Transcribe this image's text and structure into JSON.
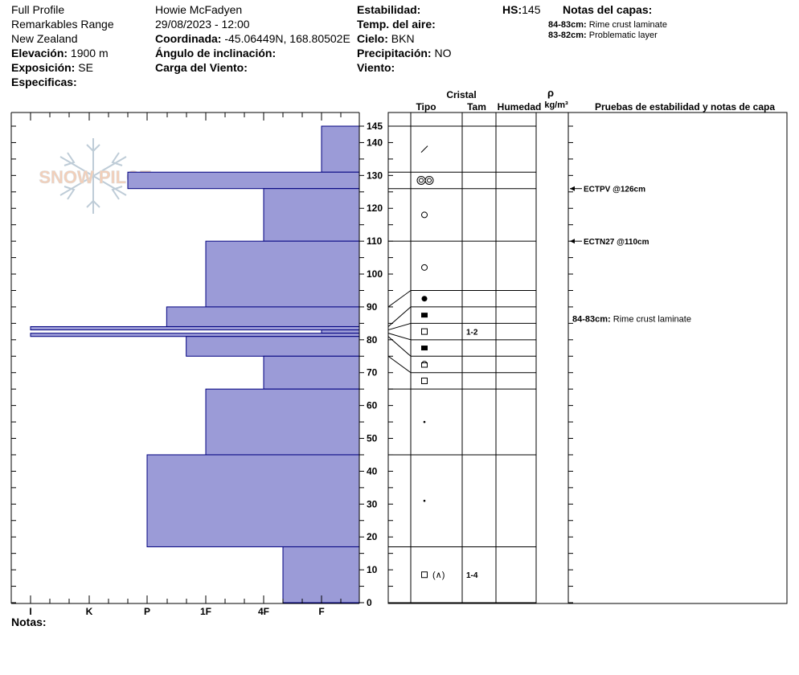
{
  "header": {
    "col1": {
      "profile_type": "Full Profile",
      "location": "Remarkables Range",
      "country": "New Zealand",
      "elevation_label": "Elevación:",
      "elevation_value": "1900 m",
      "aspect_label": "Exposición:",
      "aspect_value": "SE",
      "specifics_label": "Especificas:"
    },
    "col2": {
      "observer": "Howie McFadyen",
      "datetime": "29/08/2023 - 12:00",
      "coord_label": "Coordinada:",
      "coord_value": "-45.06449N, 168.80502E",
      "slope_label": "Ángulo de inclinación:",
      "wind_load_label": "Carga del Viento:"
    },
    "col3": {
      "stability_label": "Estabilidad:",
      "air_temp_label": "Temp. del aire:",
      "sky_label": "Cielo:",
      "sky_value": "BKN",
      "precip_label": "Precipitación:",
      "precip_value": "NO",
      "wind_label": "Viento:"
    },
    "hs_label": "HS:",
    "hs_value": "145",
    "layer_notes_title": "Notas del capas:",
    "layer_notes": [
      {
        "range": "84-83cm:",
        "text": "Rime crust laminate"
      },
      {
        "range": "83-82cm:",
        "text": "Problematic layer"
      }
    ]
  },
  "columns": {
    "crystal": "Cristal",
    "type": "Tipo",
    "size": "Tam",
    "moisture": "Humedad",
    "density_symbol": "ρ",
    "density_unit": "kg/m³",
    "stability_notes": "Pruebas de estabilidad y notas de capa"
  },
  "footer": {
    "notes_label": "Notas:"
  },
  "logo_text": "SNOW PILOT",
  "colors": {
    "bar_fill": "#9b9bd7",
    "bar_stroke": "#00007f",
    "line": "#000000"
  },
  "chart_data": {
    "type": "bar",
    "orientation": "horizontal",
    "x_label": "",
    "y_label": "",
    "hardness_ticks": [
      "I",
      "K",
      "P",
      "1F",
      "4F",
      "F"
    ],
    "y_range": [
      0,
      145
    ],
    "y_ticks": [
      0,
      10,
      20,
      30,
      40,
      50,
      60,
      70,
      80,
      90,
      100,
      110,
      120,
      130,
      140,
      145
    ],
    "hardness_layers": [
      {
        "bottom": 131,
        "top": 145,
        "hardness": "F"
      },
      {
        "bottom": 126,
        "top": 131,
        "hardness": "P+"
      },
      {
        "bottom": 110,
        "top": 126,
        "hardness": "4F"
      },
      {
        "bottom": 90,
        "top": 110,
        "hardness": "1F"
      },
      {
        "bottom": 84,
        "top": 90,
        "hardness": "P-"
      },
      {
        "bottom": 83,
        "top": 84,
        "hardness": "I"
      },
      {
        "bottom": 82,
        "top": 83,
        "hardness": "F"
      },
      {
        "bottom": 81,
        "top": 82,
        "hardness": "I"
      },
      {
        "bottom": 75,
        "top": 81,
        "hardness": "1F+"
      },
      {
        "bottom": 65,
        "top": 75,
        "hardness": "4F"
      },
      {
        "bottom": 45,
        "top": 65,
        "hardness": "1F"
      },
      {
        "bottom": 17,
        "top": 45,
        "hardness": "P"
      },
      {
        "bottom": 0,
        "top": 17,
        "hardness": "4F-"
      }
    ],
    "layer_boundaries": [
      145,
      131,
      126,
      110,
      95,
      90,
      85,
      80,
      75,
      70,
      65,
      45,
      17,
      0
    ],
    "crystal_layers": [
      {
        "mid": 138,
        "type": "Precipitation Particles (slash)",
        "size": ""
      },
      {
        "mid": 128.5,
        "type": "Rounded grains (double)",
        "size": ""
      },
      {
        "mid": 118,
        "type": "Rounded grains",
        "size": ""
      },
      {
        "mid": 102,
        "type": "Rounded grains",
        "size": ""
      },
      {
        "mid": 92.5,
        "type": "Melt forms",
        "size": ""
      },
      {
        "mid": 87.5,
        "type": "Ice formation",
        "size": ""
      },
      {
        "mid": 82.5,
        "type": "Faceted crystals",
        "size": "1-2"
      },
      {
        "mid": 77.5,
        "type": "Ice formation",
        "size": ""
      },
      {
        "mid": 72.5,
        "type": "Faceted rounded",
        "size": ""
      },
      {
        "mid": 67.5,
        "type": "Faceted crystals",
        "size": ""
      },
      {
        "mid": 55,
        "type": "Small rounded",
        "size": ""
      },
      {
        "mid": 31,
        "type": "Small rounded",
        "size": ""
      },
      {
        "mid": 8.5,
        "type": "Faceted / depth hoar",
        "size": "1-4"
      }
    ],
    "stability_tests": [
      {
        "depth": 126,
        "label": "ECTPV @126cm"
      },
      {
        "depth": 110,
        "label": "ECTN27 @110cm"
      }
    ],
    "layer_note_annotations": [
      {
        "depth": 84,
        "range": "84-83cm:",
        "text": "Rime crust laminate"
      }
    ]
  }
}
